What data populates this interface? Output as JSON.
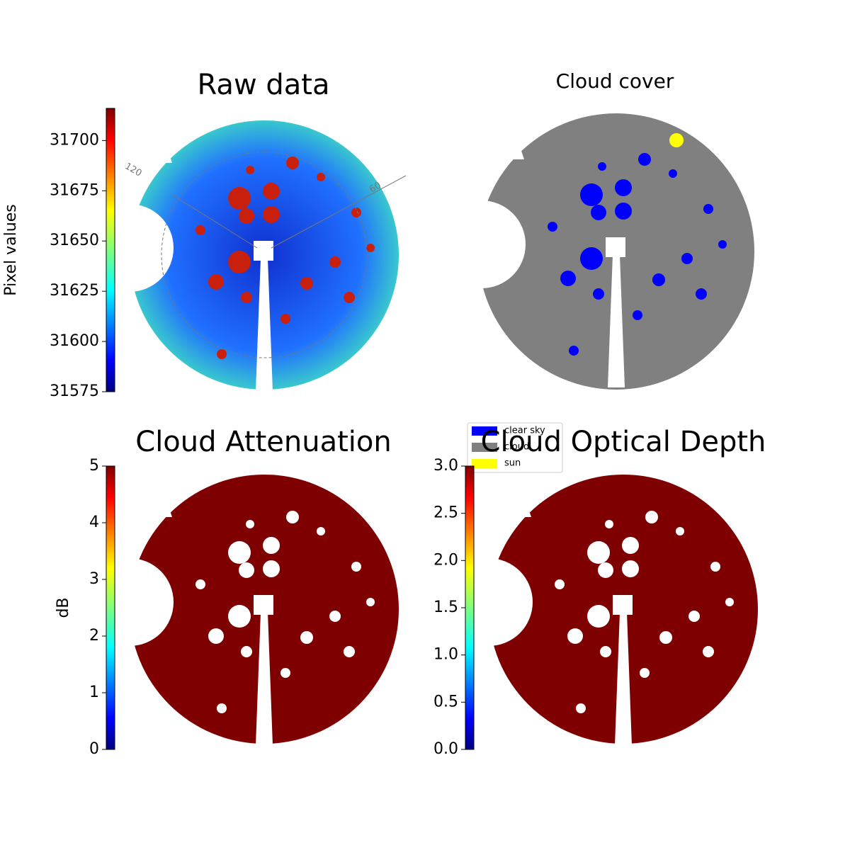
{
  "chart_data": [
    {
      "type": "image",
      "title": "Raw data",
      "annotations": [
        "120",
        "60"
      ],
      "colorbar": {
        "label": "Pixel values",
        "colormap": "jet",
        "lim": [
          31575,
          31716
        ],
        "ticks": [
          31575,
          31600,
          31625,
          31650,
          31675,
          31700
        ]
      }
    },
    {
      "type": "image",
      "title": "Cloud cover",
      "legend": [
        {
          "name": "clear sky",
          "color": "#0000ff"
        },
        {
          "name": "cloud",
          "color": "#808080"
        },
        {
          "name": "sun",
          "color": "#ffff00"
        }
      ]
    },
    {
      "type": "image",
      "title": "Cloud Attenuation",
      "colorbar": {
        "label": "dB",
        "colormap": "jet",
        "lim": [
          0,
          5
        ],
        "ticks": [
          0,
          1,
          2,
          3,
          4,
          5
        ]
      }
    },
    {
      "type": "image",
      "title": "Cloud Optical Depth",
      "colorbar": {
        "colormap": "jet",
        "lim": [
          0,
          3
        ],
        "ticks": [
          {
            "value": 0,
            "label": "0.0"
          },
          0.5,
          {
            "value": 1,
            "label": "1.0"
          },
          1.5,
          {
            "value": 2,
            "label": "2.0"
          },
          2.5,
          {
            "value": 3,
            "label": "3.0"
          }
        ]
      }
    }
  ]
}
